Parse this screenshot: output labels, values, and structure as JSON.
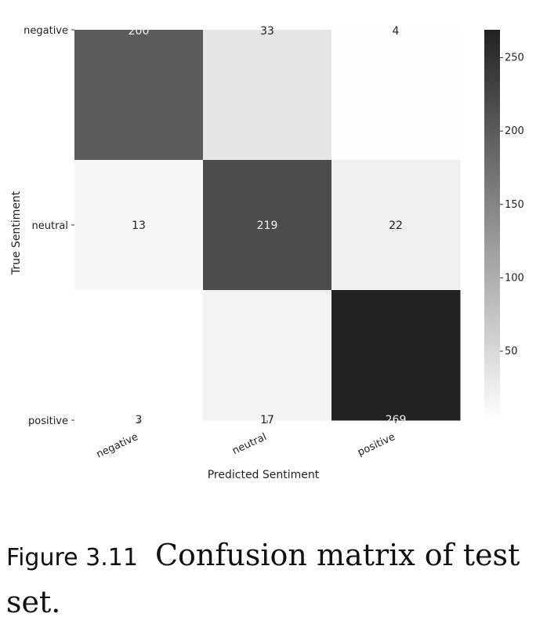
{
  "chart_data": {
    "type": "heatmap",
    "title": "",
    "xlabel": "Predicted Sentiment",
    "ylabel": "True Sentiment",
    "x_categories": [
      "negative",
      "neutral",
      "positive"
    ],
    "y_categories": [
      "negative",
      "neutral",
      "positive"
    ],
    "values": [
      [
        200,
        33,
        4
      ],
      [
        13,
        219,
        22
      ],
      [
        3,
        17,
        269
      ]
    ],
    "cell_labels": [
      [
        "200",
        "33",
        "4"
      ],
      [
        "13",
        "219",
        "22"
      ],
      [
        "3",
        "17",
        "269"
      ]
    ],
    "color_scale": {
      "min": 3,
      "max": 269,
      "low_color": "#ffffff",
      "high_color": "#222222"
    },
    "colorbar_ticks": [
      50,
      100,
      150,
      200,
      250
    ],
    "colorbar_tick_labels": [
      "50",
      "100",
      "150",
      "200",
      "250"
    ]
  },
  "caption": {
    "label": "Figure 3.11",
    "text": "Confusion matrix of test set."
  }
}
